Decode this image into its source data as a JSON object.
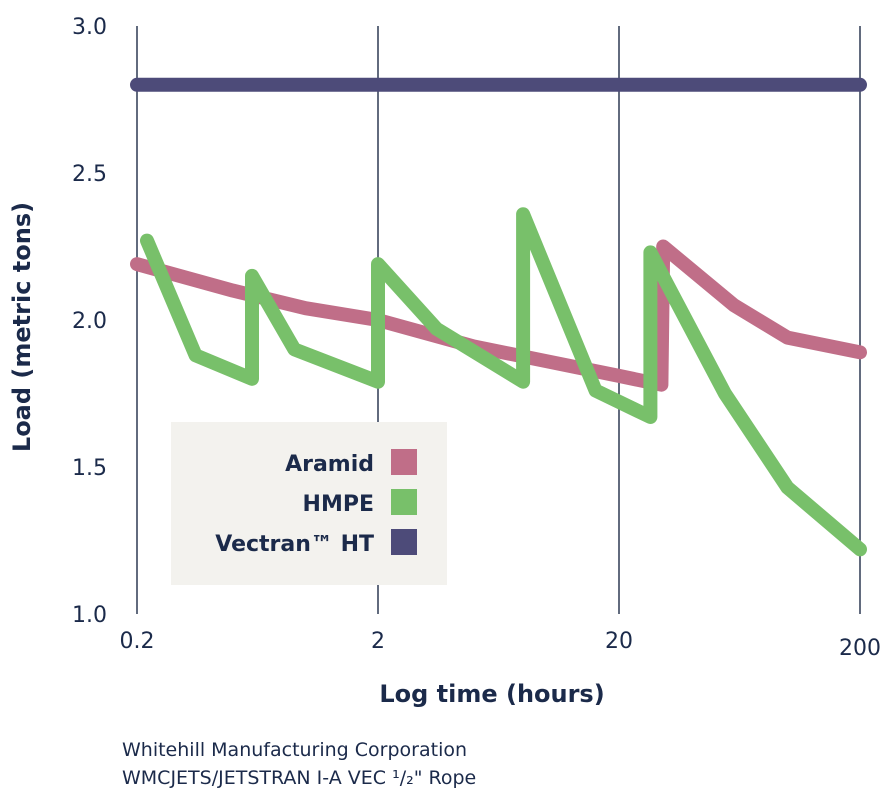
{
  "chart_data": {
    "type": "line",
    "xlabel": "Log time (hours)",
    "ylabel": "Load (metric tons)",
    "xscale": "log",
    "xlim": [
      0.2,
      200
    ],
    "ylim": [
      1.0,
      3.0
    ],
    "x_ticks": [
      "0.2",
      "2",
      "20",
      "200"
    ],
    "y_ticks": [
      "3.0",
      "2.5",
      "2.0",
      "1.5",
      "1.0"
    ],
    "grid": "vertical",
    "legend_position": "bottom-left",
    "series": [
      {
        "name": "Vectran™ HT",
        "color": "#4d4b79",
        "points": [
          [
            0.2,
            2.8
          ],
          [
            200,
            2.8
          ]
        ]
      },
      {
        "name": "Aramid",
        "color": "#c06e88",
        "points": [
          [
            0.2,
            2.19
          ],
          [
            0.5,
            2.1
          ],
          [
            1.0,
            2.04
          ],
          [
            2.0,
            2.0
          ],
          [
            5.0,
            1.91
          ],
          [
            10.0,
            1.86
          ],
          [
            20.0,
            1.81
          ],
          [
            30.0,
            1.78
          ],
          [
            30.5,
            2.25
          ],
          [
            60.0,
            2.05
          ],
          [
            100.0,
            1.94
          ],
          [
            200.0,
            1.89
          ]
        ]
      },
      {
        "name": "HMPE",
        "color": "#78c06a",
        "points": [
          [
            0.22,
            2.27
          ],
          [
            0.35,
            1.88
          ],
          [
            0.6,
            1.8
          ],
          [
            0.6,
            2.15
          ],
          [
            0.9,
            1.9
          ],
          [
            2.0,
            1.79
          ],
          [
            2.0,
            2.19
          ],
          [
            3.5,
            1.97
          ],
          [
            8.0,
            1.79
          ],
          [
            8.0,
            2.36
          ],
          [
            16.0,
            1.76
          ],
          [
            27.0,
            1.67
          ],
          [
            27.0,
            2.23
          ],
          [
            55.0,
            1.75
          ],
          [
            100.0,
            1.43
          ],
          [
            200.0,
            1.22
          ]
        ]
      }
    ],
    "legend_order": [
      "Aramid",
      "HMPE",
      "Vectran™ HT"
    ]
  },
  "caption": {
    "line1": "Whitehill Manufacturing Corporation",
    "line2": "WMCJETS/JETSTRAN I-A VEC ¹/₂\" Rope"
  },
  "colors": {
    "text": "#1b2a4a",
    "grid": "#2e3a54",
    "legend_bg": "#f3f2ee"
  }
}
